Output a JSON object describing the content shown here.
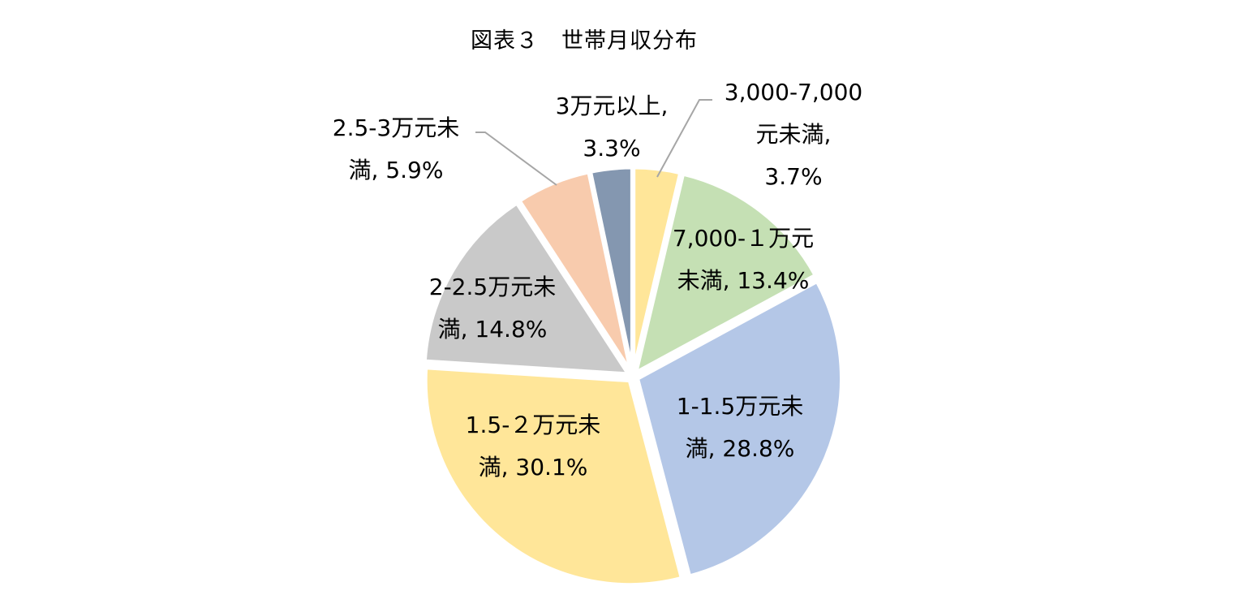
{
  "chart_data": {
    "type": "pie",
    "title": "図表３　世帯月収分布",
    "start_angle_deg": 0,
    "direction": "clockwise",
    "slices": [
      {
        "label_lines": [
          "3,000-7,000",
          "元未満,",
          "3.7%"
        ],
        "value": 3.7,
        "color": "#FFE699"
      },
      {
        "label_lines": [
          "7,000-１万元",
          "未満, 13.4%"
        ],
        "value": 13.4,
        "color": "#C5E0B4"
      },
      {
        "label_lines": [
          "1-1.5万元未",
          "満, 28.8%"
        ],
        "value": 28.8,
        "color": "#B4C7E7"
      },
      {
        "label_lines": [
          "1.5-２万元未",
          "満, 30.1%"
        ],
        "value": 30.1,
        "color": "#FFE699"
      },
      {
        "label_lines": [
          "2-2.5万元未",
          "満, 14.8%"
        ],
        "value": 14.8,
        "color": "#C9C9C9"
      },
      {
        "label_lines": [
          "2.5-3万元未",
          "満, 5.9%"
        ],
        "value": 5.9,
        "color": "#F8CBAD"
      },
      {
        "label_lines": [
          "3万元以上,",
          "3.3%"
        ],
        "value": 3.3,
        "color": "#8497B0"
      }
    ],
    "leader_line_color": "#A6A6A6"
  }
}
